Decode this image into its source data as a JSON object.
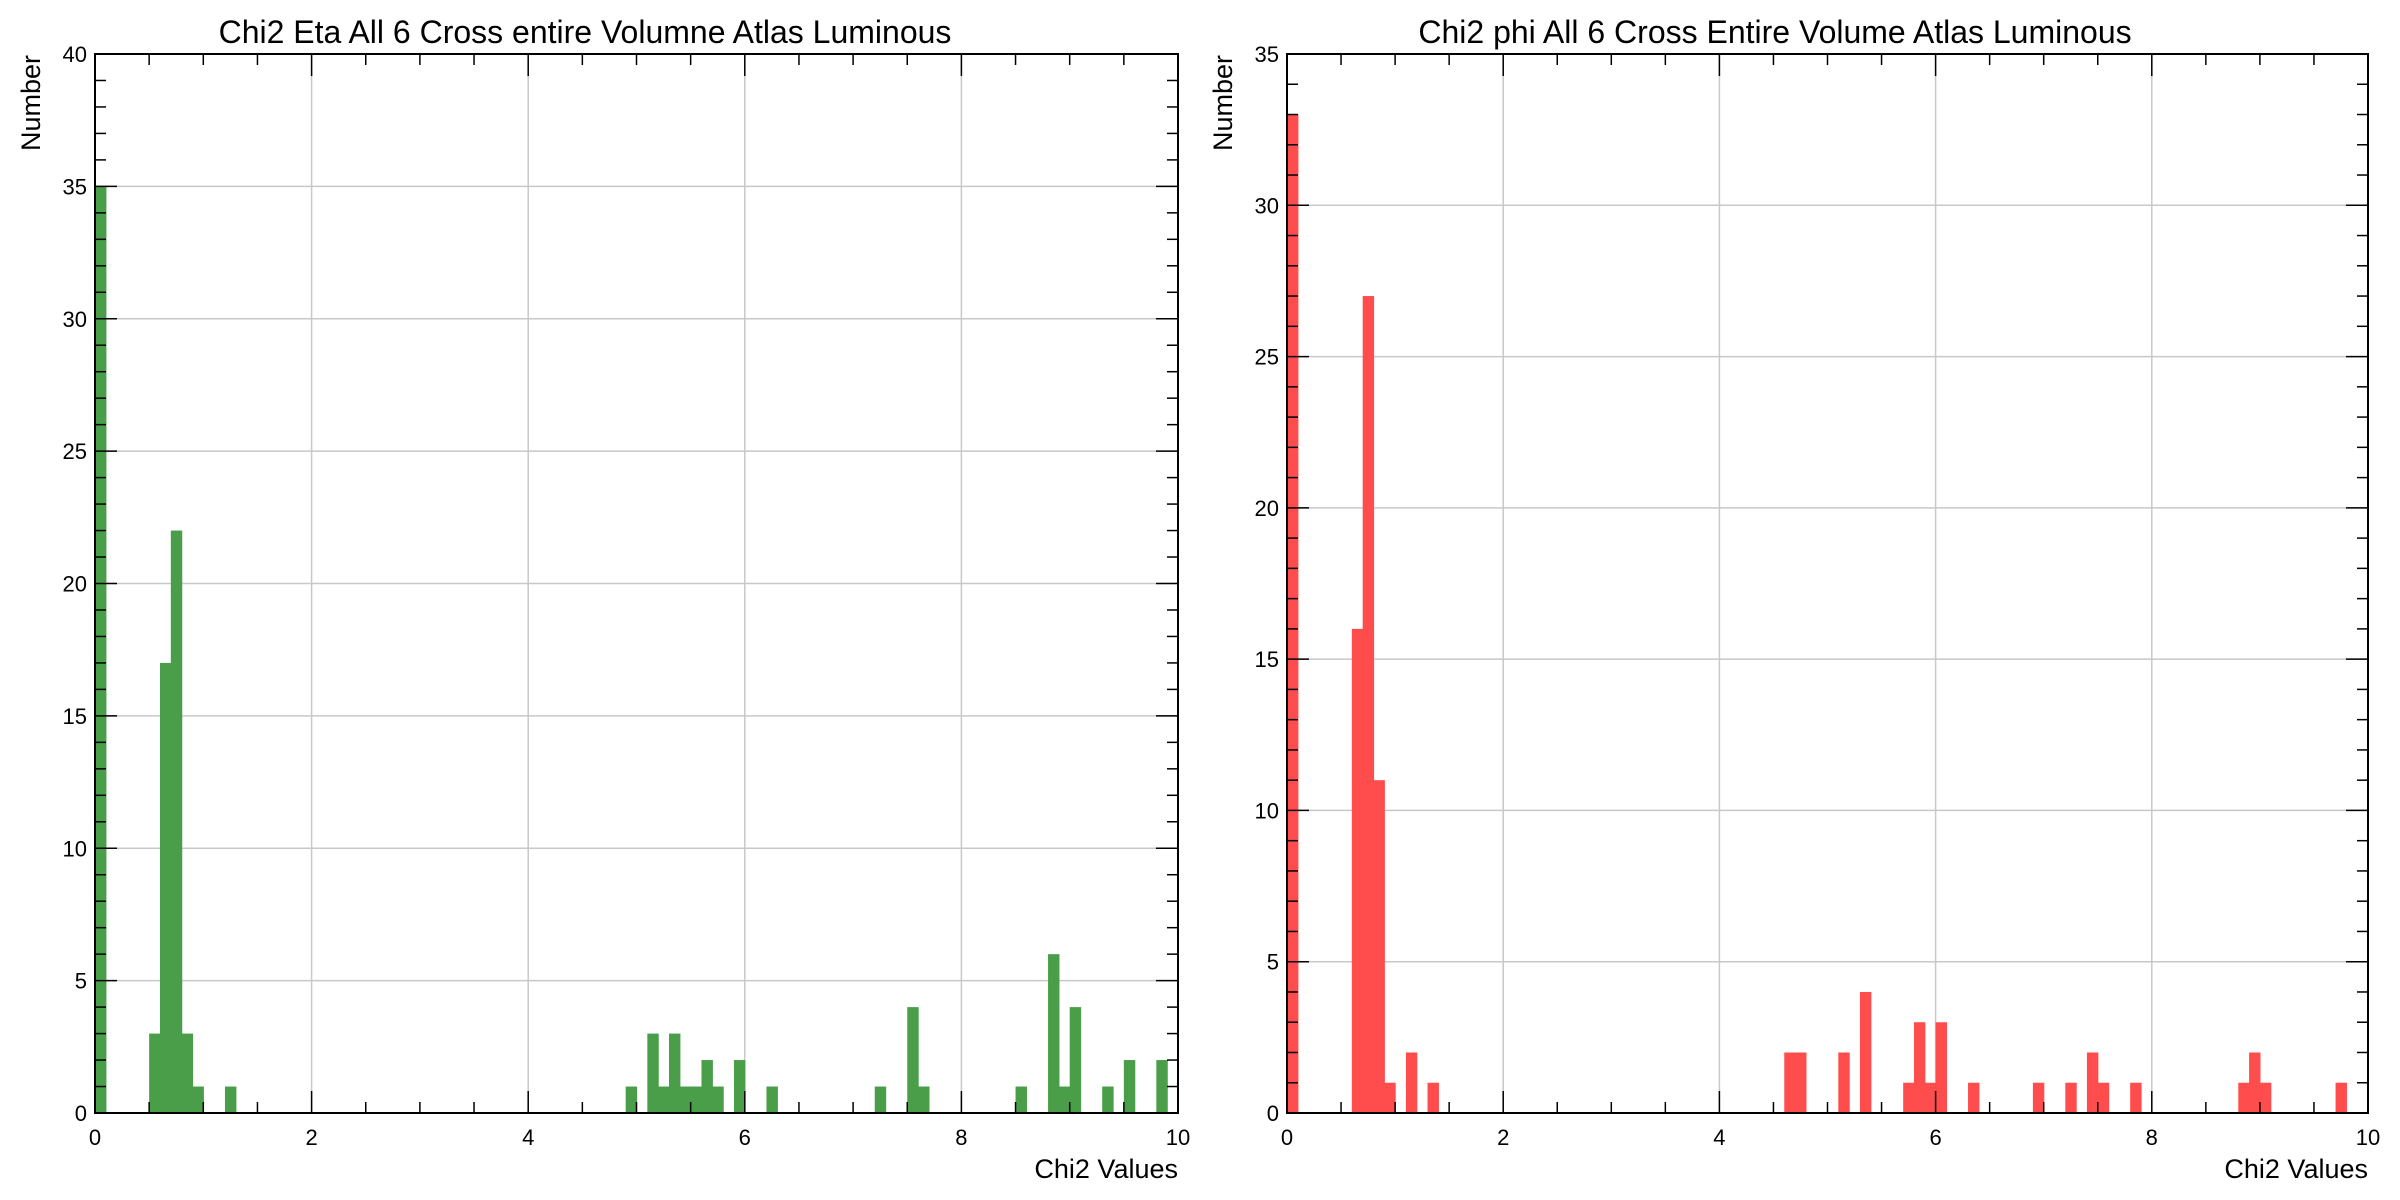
{
  "chart_data": [
    {
      "type": "bar",
      "title": "Chi2 Eta All 6 Cross entire Volumne Atlas Luminous",
      "xlabel": "Chi2 Values",
      "ylabel": "Number",
      "xlim": [
        0,
        10
      ],
      "ylim": [
        0,
        40
      ],
      "xticks": [
        0,
        2,
        4,
        6,
        8,
        10
      ],
      "yticks": [
        0,
        5,
        10,
        15,
        20,
        25,
        30,
        35,
        40
      ],
      "grid": true,
      "bin_width": 0.1,
      "color": "#4a9e4a",
      "bins": [
        {
          "x": 0.0,
          "count": 35
        },
        {
          "x": 0.5,
          "count": 3
        },
        {
          "x": 0.6,
          "count": 17
        },
        {
          "x": 0.7,
          "count": 22
        },
        {
          "x": 0.8,
          "count": 3
        },
        {
          "x": 0.9,
          "count": 1
        },
        {
          "x": 1.2,
          "count": 1
        },
        {
          "x": 4.9,
          "count": 1
        },
        {
          "x": 5.1,
          "count": 3
        },
        {
          "x": 5.2,
          "count": 1
        },
        {
          "x": 5.3,
          "count": 3
        },
        {
          "x": 5.4,
          "count": 1
        },
        {
          "x": 5.5,
          "count": 1
        },
        {
          "x": 5.6,
          "count": 2
        },
        {
          "x": 5.7,
          "count": 1
        },
        {
          "x": 5.9,
          "count": 2
        },
        {
          "x": 6.2,
          "count": 1
        },
        {
          "x": 7.2,
          "count": 1
        },
        {
          "x": 7.5,
          "count": 4
        },
        {
          "x": 7.6,
          "count": 1
        },
        {
          "x": 8.5,
          "count": 1
        },
        {
          "x": 8.8,
          "count": 6
        },
        {
          "x": 8.9,
          "count": 1
        },
        {
          "x": 9.0,
          "count": 4
        },
        {
          "x": 9.3,
          "count": 1
        },
        {
          "x": 9.5,
          "count": 2
        },
        {
          "x": 9.8,
          "count": 2
        }
      ]
    },
    {
      "type": "bar",
      "title": "Chi2 phi All 6 Cross Entire Volume Atlas Luminous",
      "xlabel": "Chi2 Values",
      "ylabel": "Number",
      "xlim": [
        0,
        10
      ],
      "ylim": [
        0,
        35
      ],
      "xticks": [
        0,
        2,
        4,
        6,
        8,
        10
      ],
      "yticks": [
        0,
        5,
        10,
        15,
        20,
        25,
        30,
        35
      ],
      "grid": true,
      "bin_width": 0.1,
      "color": "#ff4d4d",
      "bins": [
        {
          "x": 0.0,
          "count": 33
        },
        {
          "x": 0.6,
          "count": 16
        },
        {
          "x": 0.7,
          "count": 27
        },
        {
          "x": 0.8,
          "count": 11
        },
        {
          "x": 0.9,
          "count": 1
        },
        {
          "x": 1.1,
          "count": 2
        },
        {
          "x": 1.3,
          "count": 1
        },
        {
          "x": 4.6,
          "count": 2
        },
        {
          "x": 4.7,
          "count": 2
        },
        {
          "x": 5.1,
          "count": 2
        },
        {
          "x": 5.3,
          "count": 4
        },
        {
          "x": 5.7,
          "count": 1
        },
        {
          "x": 5.8,
          "count": 3
        },
        {
          "x": 5.9,
          "count": 1
        },
        {
          "x": 6.0,
          "count": 3
        },
        {
          "x": 6.3,
          "count": 1
        },
        {
          "x": 6.9,
          "count": 1
        },
        {
          "x": 7.2,
          "count": 1
        },
        {
          "x": 7.4,
          "count": 2
        },
        {
          "x": 7.5,
          "count": 1
        },
        {
          "x": 7.8,
          "count": 1
        },
        {
          "x": 8.8,
          "count": 1
        },
        {
          "x": 8.9,
          "count": 2
        },
        {
          "x": 9.0,
          "count": 1
        },
        {
          "x": 9.7,
          "count": 1
        }
      ]
    }
  ]
}
